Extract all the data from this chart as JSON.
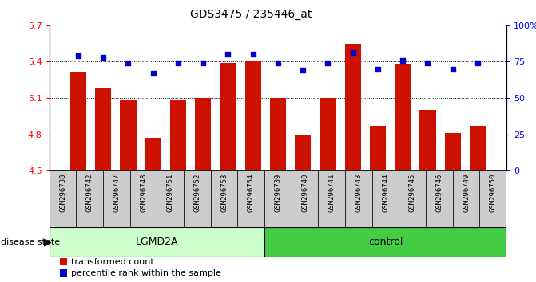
{
  "title": "GDS3475 / 235446_at",
  "samples": [
    "GSM296738",
    "GSM296742",
    "GSM296747",
    "GSM296748",
    "GSM296751",
    "GSM296752",
    "GSM296753",
    "GSM296754",
    "GSM296739",
    "GSM296740",
    "GSM296741",
    "GSM296743",
    "GSM296744",
    "GSM296745",
    "GSM296746",
    "GSM296749",
    "GSM296750"
  ],
  "bar_values": [
    5.32,
    5.18,
    5.08,
    4.77,
    5.08,
    5.1,
    5.39,
    5.4,
    5.1,
    4.8,
    5.1,
    5.55,
    4.87,
    5.38,
    5.0,
    4.81,
    4.87
  ],
  "percentile_values": [
    79,
    78,
    74,
    67,
    74,
    74,
    80,
    80,
    74,
    69,
    74,
    81,
    70,
    76,
    74,
    70,
    74
  ],
  "lgmd2a_count": 8,
  "bar_color": "#cc1100",
  "dot_color": "#0000cc",
  "ylim_left": [
    4.5,
    5.7
  ],
  "ylim_right": [
    0,
    100
  ],
  "yticks_left": [
    4.5,
    4.8,
    5.1,
    5.4,
    5.7
  ],
  "yticks_right": [
    0,
    25,
    50,
    75,
    100
  ],
  "ytick_labels_right": [
    "0",
    "25",
    "50",
    "75",
    "100%"
  ],
  "grid_values": [
    4.8,
    5.1,
    5.4
  ],
  "lgmd2a_color": "#ccffcc",
  "control_color": "#44cc44",
  "sample_bg_color": "#cccccc",
  "legend_items": [
    "transformed count",
    "percentile rank within the sample"
  ]
}
